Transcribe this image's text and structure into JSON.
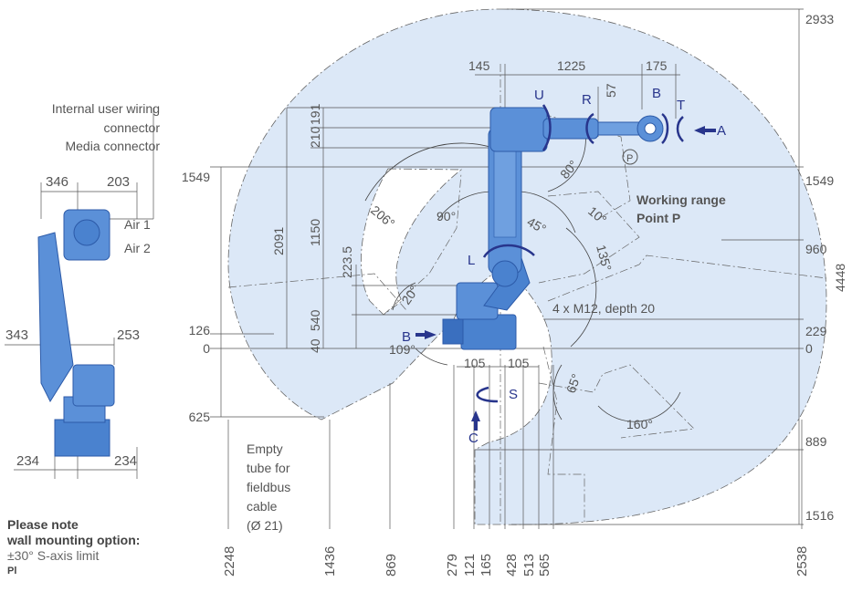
{
  "labels": {
    "internal_wiring_1": "Internal user wiring",
    "internal_wiring_2": "connector",
    "media_connector": "Media connector",
    "air1": "Air 1",
    "air2": "Air 2",
    "working_range_1": "Working range",
    "working_range_2": "Point P",
    "bolts": "4 x M12, depth 20",
    "tube_1": "Empty",
    "tube_2": "tube for",
    "tube_3": "fieldbus",
    "tube_4": "cable",
    "tube_5": "(Ø 21)"
  },
  "axes": {
    "S": "S",
    "L": "L",
    "U": "U",
    "R": "R",
    "B": "B",
    "T": "T",
    "view_A": "A",
    "view_B": "B",
    "view_C": "C",
    "point_P": "P"
  },
  "side_dims": {
    "top_left": "346",
    "top_right": "203",
    "mid_left": "343",
    "mid_right": "253",
    "bottom_left": "234",
    "bottom_right": "234"
  },
  "top_dims": {
    "d145": "145",
    "d1225": "1225",
    "d175": "175"
  },
  "vertical_dims": {
    "v210": "210",
    "v191": "191",
    "v57": "57",
    "v1150": "1150",
    "v2091": "2091",
    "v223": "223.5",
    "v540": "540",
    "v40": "40"
  },
  "left_heights": {
    "h1549": "1549",
    "h126": "126",
    "h0": "0",
    "h625": "625"
  },
  "right_heights": {
    "r2933": "2933",
    "r1549": "1549",
    "r960": "960",
    "r229": "229",
    "r0": "0",
    "r889": "889",
    "r1516": "1516",
    "r4448": "4448"
  },
  "base_dims": {
    "b105a": "105",
    "b105b": "105"
  },
  "angles": {
    "a206": "206°",
    "a90": "90°",
    "a45": "45°",
    "a10": "10°",
    "a80": "80°",
    "a135": "135°",
    "a20": "20°",
    "a109": "109°",
    "a65": "65°",
    "a160": "160°"
  },
  "bottom_dims": {
    "x2248": "2248",
    "x1436": "1436",
    "x869": "869",
    "x279": "279",
    "x121": "121",
    "x165": "165",
    "x428": "428",
    "x513": "513",
    "x565": "565",
    "x2538": "2538"
  },
  "note": {
    "title_1": "Please note",
    "title_2": "wall mounting option:",
    "text": "±30° S-axis limit",
    "footer": "Pl"
  },
  "colors": {
    "range_fill": "#dce8f7",
    "robot": "#4a82cf",
    "robot_dark": "#2c5aa8",
    "accent": "#28358c",
    "line": "#555555"
  }
}
